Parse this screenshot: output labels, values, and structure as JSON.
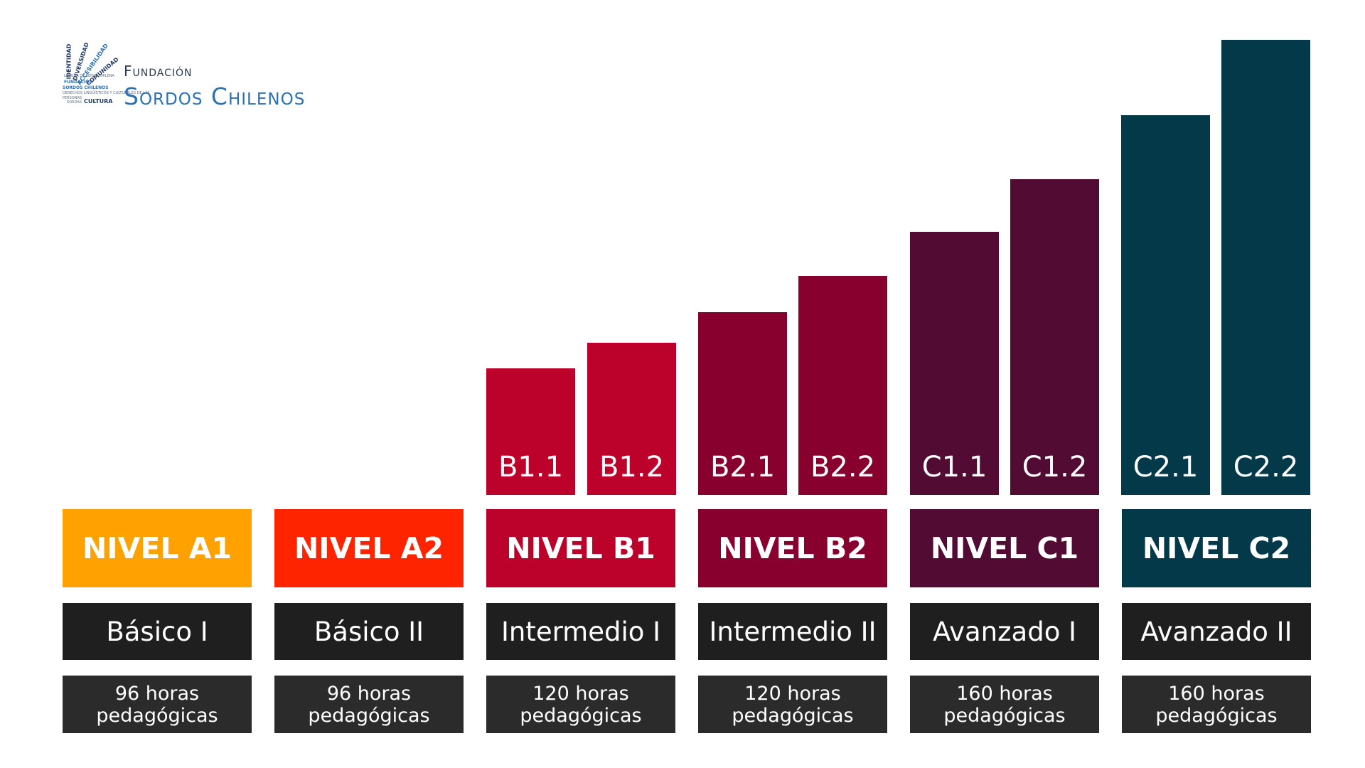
{
  "logo": {
    "word_identidad": "IDENTIDAD",
    "word_diversidad": "DIVERSIDAD",
    "word_accesibilidad": "ACCESIBILIDAD",
    "word_comunidad": "COMUNIDAD",
    "small_text_1": "LENGUA DE SEÑAS CHILENA",
    "word_fundacion": "FUNDACIÓN",
    "word_sordos_chilenos": "SORDOS CHILENOS",
    "small_text_2": "DERECHOS LINGÜÍSTICOS Y CULTURALES DE LAS",
    "word_personas": "PERSONAS",
    "word_sordas": "SORDAS",
    "word_cultura": "CULTURA",
    "title_line1": "Fundación",
    "title_line2": "Sordos Chilenos"
  },
  "sublevels": [
    {
      "label": "B1.1",
      "color": "#bc022b"
    },
    {
      "label": "B1.2",
      "color": "#bc022b"
    },
    {
      "label": "B2.1",
      "color": "#88002d"
    },
    {
      "label": "B2.2",
      "color": "#88002d"
    },
    {
      "label": "C1.1",
      "color": "#520b33"
    },
    {
      "label": "C1.2",
      "color": "#520b33"
    },
    {
      "label": "C2.1",
      "color": "#033948"
    },
    {
      "label": "C2.2",
      "color": "#033948"
    }
  ],
  "levels": [
    {
      "name": "NIVEL A1",
      "category": "Básico I",
      "hours": "96 horas\npedagógicas",
      "color": "#ffa100"
    },
    {
      "name": "NIVEL A2",
      "category": "Básico II",
      "hours": "96 horas\npedagógicas",
      "color": "#ff2400"
    },
    {
      "name": "NIVEL B1",
      "category": "Intermedio I",
      "hours": "120 horas\npedagógicas",
      "color": "#bc022b"
    },
    {
      "name": "NIVEL B2",
      "category": "Intermedio II",
      "hours": "120 horas\npedagógicas",
      "color": "#88002d"
    },
    {
      "name": "NIVEL C1",
      "category": "Avanzado I",
      "hours": "160 horas\npedagógicas",
      "color": "#520b33"
    },
    {
      "name": "NIVEL C2",
      "category": "Avanzado II",
      "hours": "160 horas\npedagógicas",
      "color": "#033948"
    }
  ]
}
